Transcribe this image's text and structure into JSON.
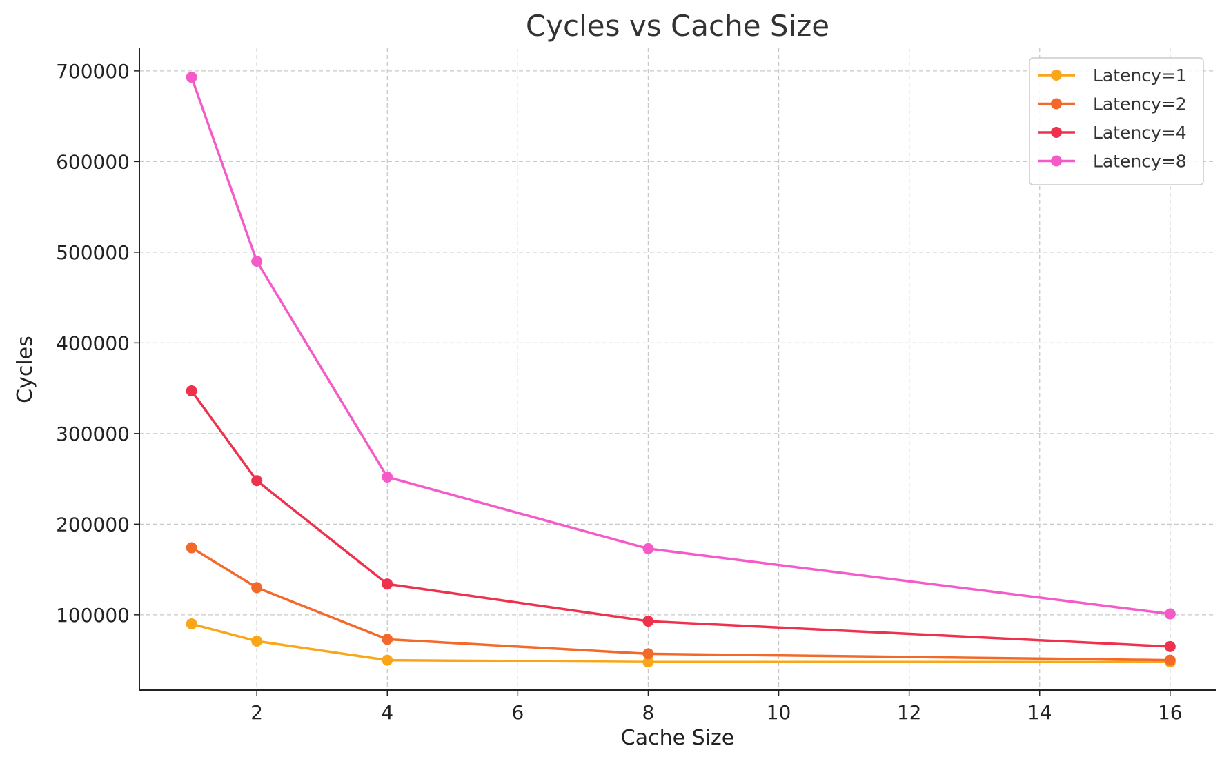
{
  "chart_data": {
    "type": "line",
    "title": "Cycles vs Cache Size",
    "xlabel": "Cache Size",
    "ylabel": "Cycles",
    "xlim": [
      0.2,
      16.7
    ],
    "ylim": [
      17000,
      725000
    ],
    "xticks": [
      2,
      4,
      6,
      8,
      10,
      12,
      14,
      16
    ],
    "yticks": [
      100000,
      200000,
      300000,
      400000,
      500000,
      600000,
      700000
    ],
    "grid": true,
    "legend_position": "top-right",
    "x": [
      1,
      2,
      4,
      8,
      16
    ],
    "series": [
      {
        "name": "Latency=1",
        "color": "#f9a61a",
        "values": [
          90000,
          71000,
          50000,
          48000,
          48000
        ]
      },
      {
        "name": "Latency=2",
        "color": "#f2692a",
        "values": [
          174000,
          130000,
          73000,
          57000,
          50000
        ]
      },
      {
        "name": "Latency=4",
        "color": "#ee324d",
        "values": [
          347000,
          248000,
          134000,
          93000,
          65000
        ]
      },
      {
        "name": "Latency=8",
        "color": "#f45bc8",
        "values": [
          693000,
          490000,
          252000,
          173000,
          101000
        ]
      }
    ]
  }
}
